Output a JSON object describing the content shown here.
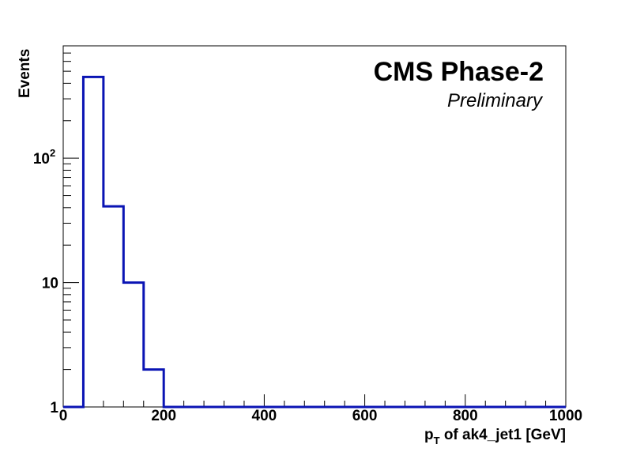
{
  "chart_data": {
    "type": "histogram",
    "title": "CMS Phase-2",
    "subtitle": "Preliminary",
    "xlabel": {
      "main": "p",
      "subscript": "T",
      "rest": " of ak4_jet1  [GeV]"
    },
    "ylabel": "Events",
    "xlim": [
      0,
      1000
    ],
    "ylim": [
      1,
      800
    ],
    "yscale": "log",
    "grid": false,
    "line_color": "#0a14b4",
    "x_ticks": [
      "0",
      "200",
      "400",
      "600",
      "800",
      "1000"
    ],
    "y_ticks": [
      {
        "value": 1,
        "label": "1"
      },
      {
        "value": 10,
        "label": "10"
      },
      {
        "value": 100,
        "label": "10",
        "exponent": "2"
      }
    ],
    "bin_edges": [
      0,
      40,
      80,
      120,
      160,
      200,
      240,
      280,
      320,
      360,
      400,
      440,
      480,
      520,
      560,
      600,
      640,
      680,
      720,
      760,
      800,
      840,
      880,
      920,
      960,
      1000
    ],
    "values": [
      1,
      450,
      41,
      10,
      2,
      1,
      1,
      1,
      1,
      1,
      1,
      1,
      1,
      1,
      1,
      1,
      1,
      1,
      1,
      1,
      1,
      1,
      1,
      1,
      1
    ]
  }
}
